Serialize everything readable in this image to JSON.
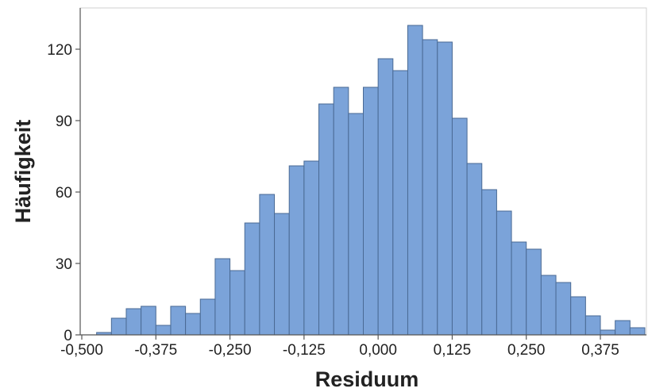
{
  "chart_data": {
    "type": "bar",
    "xlabel": "Residuum",
    "ylabel": "Häufigkeit",
    "bin_width": 0.025,
    "bins": [
      {
        "x0": -0.475,
        "value": 1
      },
      {
        "x0": -0.45,
        "value": 7
      },
      {
        "x0": -0.425,
        "value": 11
      },
      {
        "x0": -0.4,
        "value": 12
      },
      {
        "x0": -0.375,
        "value": 4
      },
      {
        "x0": -0.35,
        "value": 12
      },
      {
        "x0": -0.325,
        "value": 9
      },
      {
        "x0": -0.3,
        "value": 15
      },
      {
        "x0": -0.275,
        "value": 32
      },
      {
        "x0": -0.25,
        "value": 27
      },
      {
        "x0": -0.225,
        "value": 47
      },
      {
        "x0": -0.2,
        "value": 59
      },
      {
        "x0": -0.175,
        "value": 51
      },
      {
        "x0": -0.15,
        "value": 71
      },
      {
        "x0": -0.125,
        "value": 73
      },
      {
        "x0": -0.1,
        "value": 97
      },
      {
        "x0": -0.075,
        "value": 104
      },
      {
        "x0": -0.05,
        "value": 93
      },
      {
        "x0": -0.025,
        "value": 104
      },
      {
        "x0": 0.0,
        "value": 116
      },
      {
        "x0": 0.025,
        "value": 111
      },
      {
        "x0": 0.05,
        "value": 130
      },
      {
        "x0": 0.075,
        "value": 124
      },
      {
        "x0": 0.1,
        "value": 123
      },
      {
        "x0": 0.125,
        "value": 91
      },
      {
        "x0": 0.15,
        "value": 72
      },
      {
        "x0": 0.175,
        "value": 61
      },
      {
        "x0": 0.2,
        "value": 52
      },
      {
        "x0": 0.225,
        "value": 39
      },
      {
        "x0": 0.25,
        "value": 36
      },
      {
        "x0": 0.275,
        "value": 25
      },
      {
        "x0": 0.3,
        "value": 22
      },
      {
        "x0": 0.325,
        "value": 16
      },
      {
        "x0": 0.35,
        "value": 8
      },
      {
        "x0": 0.375,
        "value": 2
      },
      {
        "x0": 0.4,
        "value": 6
      },
      {
        "x0": 0.425,
        "value": 3
      }
    ],
    "xlim": [
      -0.5,
      0.45
    ],
    "ylim": [
      0,
      135
    ],
    "x_ticks": [
      -0.5,
      -0.375,
      -0.25,
      -0.125,
      0.0,
      0.125,
      0.25,
      0.375
    ],
    "x_tick_labels": [
      "-0,500",
      "-0,375",
      "-0,250",
      "-0,125",
      "0,000",
      "0,125",
      "0,250",
      "0,375"
    ],
    "y_ticks": [
      0,
      30,
      60,
      90,
      120
    ],
    "y_tick_labels": [
      "0",
      "30",
      "60",
      "90",
      "120"
    ],
    "grid": false,
    "colors": {
      "bar_fill": "#7ba3d9",
      "bar_stroke": "#4a6a94",
      "axis": "#555555",
      "frame": "#d0d0d0",
      "text": "#222222"
    }
  }
}
